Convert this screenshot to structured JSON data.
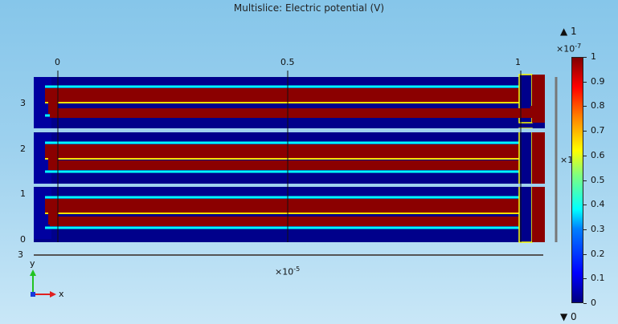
{
  "plot": {
    "title": "Multislice: Electric potential (V)",
    "x_axis_ticks": [
      "0",
      "0.5",
      "1"
    ],
    "y_axis_ticks": [
      "3",
      "2",
      "1",
      "0"
    ],
    "x_axis_scale": "×10",
    "x_axis_scale_exp": "-5",
    "z_axis_scale_top": "×10",
    "z_axis_scale_top_exp": "-7",
    "side_scale_label": "×1",
    "axis_triad": {
      "y": "y",
      "x": "x"
    },
    "clipped_label_left": "3"
  },
  "colorbar": {
    "max_label": "▲ 1",
    "min_label": "▼ 0",
    "ticks": [
      "1",
      "0.9",
      "0.8",
      "0.7",
      "0.6",
      "0.5",
      "0.4",
      "0.3",
      "0.2",
      "0.1",
      "0"
    ],
    "colors": [
      "#00007f",
      "#0000ff",
      "#00ffff",
      "#ffff00",
      "#ff0000",
      "#7f0000"
    ]
  }
}
